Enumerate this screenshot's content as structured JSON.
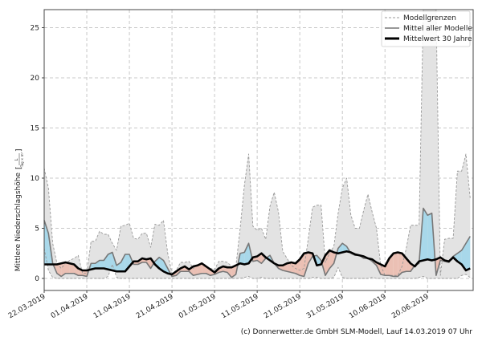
{
  "chart_data": {
    "type": "area",
    "title": "",
    "xlabel": "",
    "ylabel": "Mittlere Niederschlagshöhe",
    "ylabel_unit_numerator": "L",
    "ylabel_unit_denominator": "Tag × m²",
    "ylim": [
      -1.2,
      26.8
    ],
    "xlim_days": [
      0,
      100.7
    ],
    "grid": true,
    "legend_position": "top-right",
    "x_start": "22.03.2019",
    "x_ticks": [
      {
        "day": 0,
        "label": "22.03.2019"
      },
      {
        "day": 10,
        "label": "01.04.2019"
      },
      {
        "day": 20,
        "label": "11.04.2019"
      },
      {
        "day": 30,
        "label": "21.04.2019"
      },
      {
        "day": 40,
        "label": "01.05.2019"
      },
      {
        "day": 50,
        "label": "11.05.2019"
      },
      {
        "day": 60,
        "label": "21.05.2019"
      },
      {
        "day": 70,
        "label": "31.05.2019"
      },
      {
        "day": 80,
        "label": "10.06.2019"
      },
      {
        "day": 90,
        "label": "20.06.2019"
      }
    ],
    "y_ticks": [
      0,
      5,
      10,
      15,
      20,
      25
    ],
    "series": [
      {
        "name": "Modellgrenzen",
        "role": "upper",
        "values": [
          11,
          9,
          3.5,
          1.5,
          1,
          1.5,
          1.8,
          2,
          2.3,
          0.5,
          0.5,
          3.7,
          3.7,
          4.7,
          4.4,
          4.4,
          3.5,
          2.8,
          5.2,
          5.3,
          5.5,
          4,
          3.9,
          4.5,
          4.5,
          3.1,
          5.4,
          5.3,
          5.8,
          2.5,
          0.5,
          0.8,
          1.6,
          1.6,
          1.7,
          1,
          1.3,
          1.5,
          1.2,
          1,
          0.9,
          1.7,
          1.7,
          1.6,
          1.2,
          1.2,
          5,
          9.3,
          12.4,
          5.2,
          4.8,
          5,
          3.9,
          7.2,
          8.6,
          6.6,
          2.7,
          2,
          1.3,
          1,
          0.8,
          1,
          4,
          7.1,
          7.3,
          7.3,
          1.6,
          2.5,
          3.2,
          6.5,
          9,
          10,
          6.3,
          5,
          5,
          6.8,
          8.4,
          6.6,
          5,
          1.3,
          0.3,
          0.3,
          0.3,
          0.3,
          1.2,
          3,
          5.3,
          5.3,
          5.3,
          26.8,
          26.8,
          26.8,
          26.8,
          0.3,
          3.9,
          4,
          4,
          10.7,
          10.7,
          12.4,
          8
        ]
      },
      {
        "name": "Modellgrenzen",
        "role": "lower",
        "values": [
          3,
          0.8,
          0.1,
          0,
          0,
          0,
          0,
          0,
          0,
          0,
          0,
          0,
          0,
          0,
          0,
          0.2,
          1.4,
          0.1,
          0,
          0,
          0,
          0,
          0,
          0,
          0,
          0,
          0,
          0,
          0,
          0,
          0,
          0,
          0,
          0,
          0,
          0,
          0,
          0,
          0,
          0,
          0,
          0,
          0,
          0,
          0,
          0,
          0,
          0.1,
          0.2,
          0,
          0,
          0.1,
          0,
          0,
          0,
          0,
          0,
          0,
          0,
          0,
          0,
          0,
          0,
          0.1,
          0.1,
          0,
          0,
          0,
          0.1,
          1.1,
          0.1,
          0,
          0,
          0,
          0,
          0,
          0,
          0.1,
          0,
          0,
          0,
          0,
          0,
          0,
          0,
          0,
          0,
          0,
          0.1,
          0.2,
          0,
          0,
          0,
          0,
          0,
          0,
          0,
          0,
          0.3,
          0.4,
          0.1
        ]
      },
      {
        "name": "Mittel aller Modelle",
        "role": "models_mean",
        "values": [
          5.8,
          4.5,
          1.5,
          0.5,
          0.2,
          0.5,
          0.5,
          0.5,
          0.3,
          0.3,
          0.2,
          1.5,
          1.5,
          1.8,
          1.8,
          2.4,
          2.6,
          1.3,
          1.6,
          2.4,
          2.4,
          1.4,
          1.4,
          1.6,
          1.6,
          1,
          1.7,
          2.1,
          1.8,
          1,
          0.2,
          0.3,
          0.7,
          0.7,
          0.7,
          0.3,
          0.4,
          0.5,
          0.5,
          0.3,
          0.4,
          0.6,
          0.7,
          0.6,
          0.1,
          0.4,
          2.5,
          2.6,
          3.5,
          1.7,
          1.8,
          1.5,
          2,
          2.3,
          1.5,
          1,
          0.8,
          0.7,
          0.6,
          0.5,
          0.3,
          0.2,
          1.5,
          2.2,
          2.3,
          1.8,
          0.3,
          1,
          1.5,
          3,
          3.5,
          3.2,
          2.5,
          2.3,
          2.3,
          2,
          2,
          1.7,
          1.3,
          0.4,
          0.3,
          0.3,
          0.2,
          0.2,
          0.6,
          0.7,
          0.7,
          1.3,
          1.5,
          7,
          6.3,
          6.5,
          0.3,
          1.8,
          1.7,
          1.6,
          2.2,
          2.5,
          2.8,
          3.5,
          4.2
        ]
      },
      {
        "name": "Mittelwert 30 Jahre",
        "role": "climate",
        "values": [
          1.4,
          1.4,
          1.4,
          1.4,
          1.5,
          1.6,
          1.5,
          1.4,
          1,
          0.8,
          0.8,
          0.9,
          1,
          1,
          1,
          0.9,
          0.8,
          0.7,
          0.7,
          0.7,
          1.2,
          1.7,
          1.7,
          2,
          1.9,
          2,
          1.4,
          1,
          0.7,
          0.5,
          0.4,
          0.7,
          1,
          1.2,
          0.9,
          1.2,
          1.3,
          1.5,
          1.2,
          0.9,
          0.6,
          1,
          1.2,
          1.1,
          1.1,
          1.3,
          1.5,
          1.4,
          1.5,
          2.1,
          2.2,
          2.5,
          2.1,
          1.8,
          1.5,
          1.3,
          1.3,
          1.5,
          1.6,
          1.5,
          1.9,
          2.5,
          2.6,
          2.5,
          1.3,
          1.4,
          2.3,
          2.8,
          2.6,
          2.5,
          2.6,
          2.7,
          2.6,
          2.4,
          2.3,
          2.2,
          2,
          1.9,
          1.6,
          1.4,
          1.2,
          2,
          2.5,
          2.6,
          2.5,
          2,
          1.5,
          1.2,
          1.7,
          1.8,
          1.9,
          1.8,
          1.9,
          2.1,
          1.8,
          1.7,
          2.1,
          1.7,
          1.4,
          0.8,
          1
        ]
      }
    ],
    "colors": {
      "band": "#e3e3e3",
      "above": "#a8d8ea",
      "below": "#ebc0b4",
      "models_line": "#777777",
      "climate_line": "#000000",
      "grid": "#c8c8c8"
    }
  },
  "legend": {
    "items": [
      "Modellgrenzen",
      "Mittel aller Modelle",
      "Mittelwert 30 Jahre"
    ]
  },
  "footer": "(c) Donnerwetter.de GmbH SLM-Modell, Lauf 14.03.2019 07 Uhr"
}
